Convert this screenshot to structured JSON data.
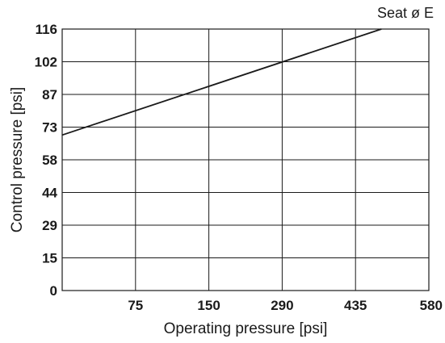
{
  "chart_data": {
    "type": "line",
    "title": "",
    "xlabel": "Operating pressure [psi]",
    "ylabel": "Control pressure [psi]",
    "x_categories": [
      "",
      "75",
      "150",
      "290",
      "435",
      "580"
    ],
    "y_ticks": [
      "0",
      "15",
      "29",
      "44",
      "58",
      "73",
      "87",
      "102",
      "116"
    ],
    "xlim": [
      0,
      580
    ],
    "ylim": [
      0,
      116
    ],
    "grid": true,
    "series": [
      {
        "name": "Seat ø E",
        "points": [
          {
            "x": 0,
            "y": 69
          },
          {
            "x": 505,
            "y": 116
          }
        ]
      }
    ]
  }
}
